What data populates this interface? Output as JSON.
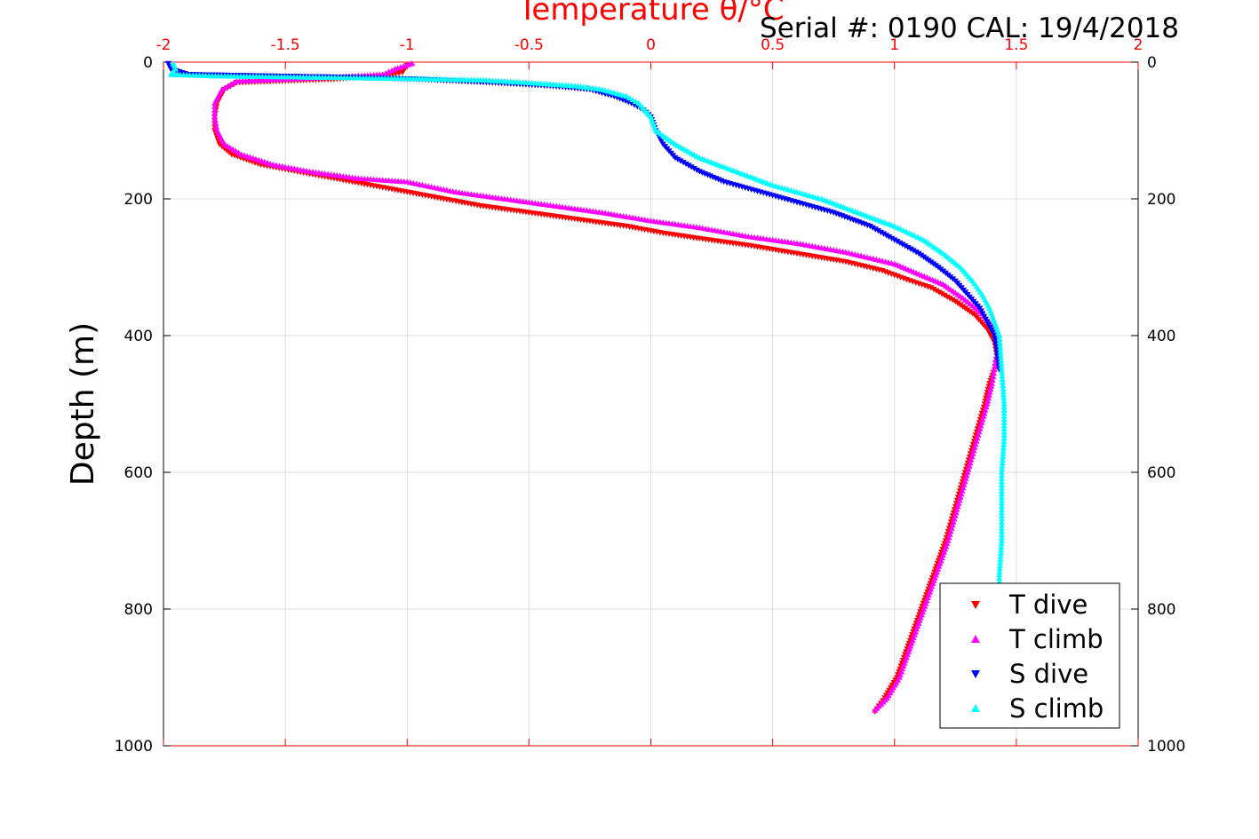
{
  "chart_data": {
    "type": "scatter",
    "title": "Temperature θ/°C",
    "annotation": "Serial #: 0190  CAL: 19/4/2018",
    "xlabel": "Temperature θ/°C",
    "ylabel": "Depth (m)",
    "xlim": [
      -2,
      2
    ],
    "ylim": [
      0,
      1000
    ],
    "y_reversed": true,
    "grid": true,
    "legend_position": "bottom-right",
    "x_ticks": [
      "-2",
      "-1.5",
      "-1",
      "-0.5",
      "0",
      "0.5",
      "1",
      "1.5",
      "2"
    ],
    "y_ticks": [
      "0",
      "200",
      "400",
      "600",
      "800",
      "1000"
    ],
    "colors": {
      "axis": "#ff0000",
      "grid": "#dddddd",
      "frame": "#000000"
    },
    "series": [
      {
        "name": "T dive",
        "marker": "triangle-down",
        "color": "#ff0000",
        "points": [
          [
            -1.0,
            5
          ],
          [
            -1.02,
            15
          ],
          [
            -1.1,
            20
          ],
          [
            -1.3,
            25
          ],
          [
            -1.55,
            28
          ],
          [
            -1.7,
            30
          ],
          [
            -1.75,
            40
          ],
          [
            -1.78,
            60
          ],
          [
            -1.79,
            80
          ],
          [
            -1.79,
            100
          ],
          [
            -1.77,
            120
          ],
          [
            -1.72,
            135
          ],
          [
            -1.6,
            150
          ],
          [
            -1.45,
            160
          ],
          [
            -1.3,
            170
          ],
          [
            -1.15,
            180
          ],
          [
            -1.0,
            190
          ],
          [
            -0.85,
            200
          ],
          [
            -0.7,
            210
          ],
          [
            -0.5,
            220
          ],
          [
            -0.3,
            230
          ],
          [
            -0.1,
            240
          ],
          [
            0.05,
            250
          ],
          [
            0.2,
            258
          ],
          [
            0.4,
            268
          ],
          [
            0.6,
            280
          ],
          [
            0.8,
            292
          ],
          [
            0.95,
            305
          ],
          [
            1.05,
            318
          ],
          [
            1.15,
            330
          ],
          [
            1.25,
            350
          ],
          [
            1.33,
            370
          ],
          [
            1.38,
            390
          ],
          [
            1.41,
            410
          ],
          [
            1.42,
            430
          ],
          [
            1.41,
            450
          ],
          [
            1.39,
            470
          ],
          [
            1.37,
            500
          ],
          [
            1.33,
            550
          ],
          [
            1.29,
            600
          ],
          [
            1.25,
            650
          ],
          [
            1.21,
            700
          ],
          [
            1.16,
            750
          ],
          [
            1.11,
            800
          ],
          [
            1.06,
            850
          ],
          [
            1.01,
            900
          ],
          [
            0.96,
            930
          ],
          [
            0.92,
            950
          ]
        ]
      },
      {
        "name": "T climb",
        "marker": "triangle-up",
        "color": "#ff00ff",
        "points": [
          [
            -0.98,
            2
          ],
          [
            -1.05,
            10
          ],
          [
            -1.1,
            18
          ],
          [
            -1.3,
            22
          ],
          [
            -1.5,
            25
          ],
          [
            -1.7,
            28
          ],
          [
            -1.76,
            40
          ],
          [
            -1.79,
            60
          ],
          [
            -1.79,
            80
          ],
          [
            -1.78,
            100
          ],
          [
            -1.75,
            120
          ],
          [
            -1.68,
            135
          ],
          [
            -1.55,
            150
          ],
          [
            -1.4,
            160
          ],
          [
            -1.2,
            170
          ],
          [
            -1.0,
            175
          ],
          [
            -0.8,
            190
          ],
          [
            -0.6,
            200
          ],
          [
            -0.4,
            210
          ],
          [
            -0.2,
            220
          ],
          [
            0.0,
            232
          ],
          [
            0.2,
            242
          ],
          [
            0.4,
            255
          ],
          [
            0.6,
            265
          ],
          [
            0.8,
            278
          ],
          [
            1.0,
            295
          ],
          [
            1.1,
            310
          ],
          [
            1.2,
            325
          ],
          [
            1.28,
            345
          ],
          [
            1.35,
            365
          ],
          [
            1.4,
            385
          ],
          [
            1.43,
            410
          ],
          [
            1.42,
            430
          ],
          [
            1.41,
            450
          ],
          [
            1.4,
            470
          ],
          [
            1.38,
            500
          ],
          [
            1.34,
            550
          ],
          [
            1.3,
            600
          ],
          [
            1.26,
            650
          ],
          [
            1.22,
            700
          ],
          [
            1.17,
            750
          ],
          [
            1.12,
            800
          ],
          [
            1.07,
            850
          ],
          [
            1.02,
            900
          ],
          [
            0.97,
            930
          ],
          [
            0.92,
            948
          ]
        ]
      },
      {
        "name": "S dive",
        "marker": "triangle-down",
        "color": "#0000ff",
        "points": [
          [
            -1.98,
            2
          ],
          [
            -1.97,
            10
          ],
          [
            -1.9,
            18
          ],
          [
            -1.6,
            20
          ],
          [
            -1.25,
            22
          ],
          [
            -0.95,
            25
          ],
          [
            -0.65,
            30
          ],
          [
            -0.4,
            35
          ],
          [
            -0.25,
            40
          ],
          [
            -0.15,
            50
          ],
          [
            -0.08,
            60
          ],
          [
            -0.03,
            70
          ],
          [
            0.0,
            80
          ],
          [
            0.02,
            100
          ],
          [
            0.05,
            120
          ],
          [
            0.1,
            140
          ],
          [
            0.2,
            160
          ],
          [
            0.3,
            175
          ],
          [
            0.45,
            190
          ],
          [
            0.6,
            205
          ],
          [
            0.75,
            220
          ],
          [
            0.9,
            240
          ],
          [
            1.0,
            260
          ],
          [
            1.1,
            280
          ],
          [
            1.18,
            300
          ],
          [
            1.25,
            320
          ],
          [
            1.3,
            340
          ],
          [
            1.35,
            360
          ],
          [
            1.38,
            380
          ],
          [
            1.41,
            400
          ],
          [
            1.42,
            420
          ],
          [
            1.43,
            450
          ]
        ]
      },
      {
        "name": "S climb",
        "marker": "triangle-up",
        "color": "#00ffff",
        "points": [
          [
            -1.96,
            2
          ],
          [
            -1.95,
            10
          ],
          [
            -1.97,
            18
          ],
          [
            -1.8,
            20
          ],
          [
            -1.4,
            22
          ],
          [
            -1.0,
            24
          ],
          [
            -0.7,
            26
          ],
          [
            -0.5,
            30
          ],
          [
            -0.3,
            35
          ],
          [
            -0.2,
            40
          ],
          [
            -0.1,
            50
          ],
          [
            -0.05,
            60
          ],
          [
            0.0,
            80
          ],
          [
            0.02,
            100
          ],
          [
            0.1,
            120
          ],
          [
            0.2,
            140
          ],
          [
            0.35,
            160
          ],
          [
            0.5,
            180
          ],
          [
            0.7,
            200
          ],
          [
            0.85,
            220
          ],
          [
            1.0,
            240
          ],
          [
            1.12,
            260
          ],
          [
            1.2,
            280
          ],
          [
            1.27,
            300
          ],
          [
            1.32,
            320
          ],
          [
            1.36,
            340
          ],
          [
            1.39,
            360
          ],
          [
            1.41,
            380
          ],
          [
            1.43,
            400
          ],
          [
            1.44,
            450
          ],
          [
            1.45,
            500
          ],
          [
            1.45,
            550
          ],
          [
            1.44,
            600
          ],
          [
            1.44,
            650
          ],
          [
            1.44,
            700
          ],
          [
            1.43,
            750
          ],
          [
            1.43,
            770
          ]
        ]
      }
    ]
  }
}
